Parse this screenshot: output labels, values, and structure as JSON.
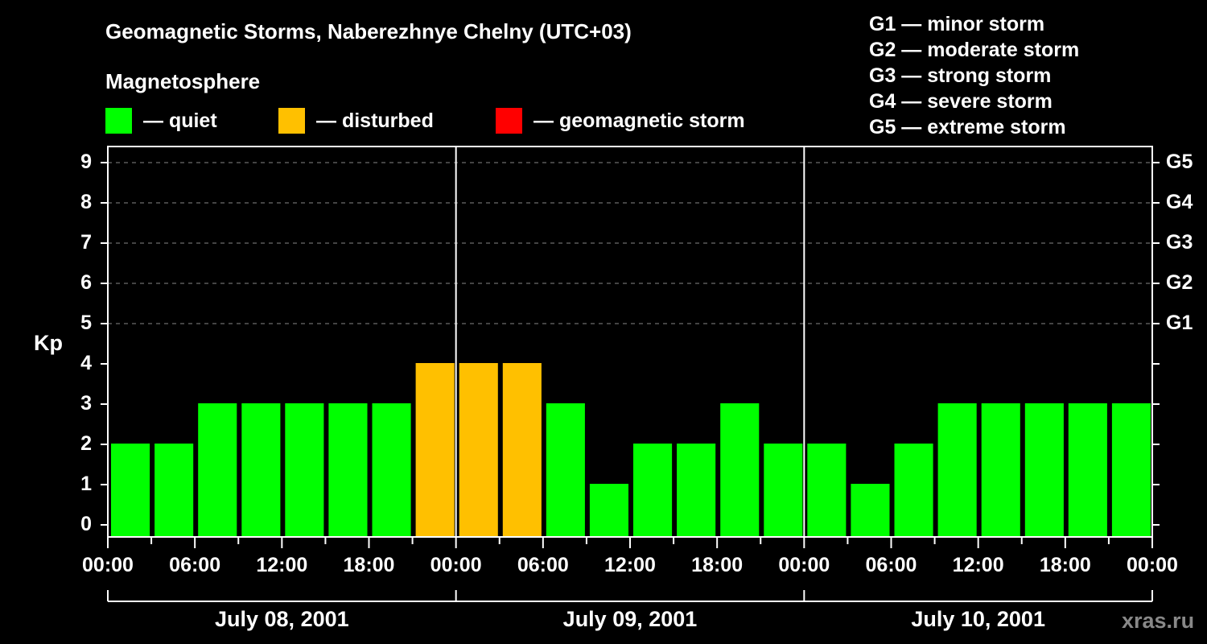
{
  "header": {
    "title": "Geomagnetic Storms, Naberezhnye Chelny (UTC+03)",
    "subtitle": "Magnetosphere"
  },
  "legend": {
    "items": [
      {
        "label": "— quiet",
        "color": "#00ff00"
      },
      {
        "label": "— disturbed",
        "color": "#ffc000"
      },
      {
        "label": "— geomagnetic storm",
        "color": "#ff0000"
      }
    ]
  },
  "storm_scale": [
    "G1 — minor storm",
    "G2 — moderate storm",
    "G3 — strong storm",
    "G4 — severe storm",
    "G5 — extreme storm"
  ],
  "axes": {
    "ylabel": "Kp",
    "yticks": [
      "0",
      "1",
      "2",
      "3",
      "4",
      "5",
      "6",
      "7",
      "8",
      "9"
    ],
    "right_ticks": [
      {
        "label": "G1",
        "kp": 5
      },
      {
        "label": "G2",
        "kp": 6
      },
      {
        "label": "G3",
        "kp": 7
      },
      {
        "label": "G4",
        "kp": 8
      },
      {
        "label": "G5",
        "kp": 9
      }
    ],
    "xticks": [
      "00:00",
      "06:00",
      "12:00",
      "18:00",
      "00:00",
      "06:00",
      "12:00",
      "18:00",
      "00:00",
      "06:00",
      "12:00",
      "18:00",
      "00:00"
    ],
    "days": [
      "July 08, 2001",
      "July 09, 2001",
      "July 10, 2001"
    ]
  },
  "watermark": "xras.ru",
  "colors": {
    "quiet": "#00ff00",
    "disturbed": "#ffc000",
    "storm": "#ff0000",
    "background": "#000000",
    "axis": "#ffffff",
    "grid": "#888888"
  },
  "chart_data": {
    "type": "bar",
    "title": "Geomagnetic Storms, Naberezhnye Chelny (UTC+03)",
    "subtitle": "Magnetosphere",
    "xlabel": "",
    "ylabel": "Kp",
    "ylim": [
      0,
      9
    ],
    "grid": "dashed horizontal lines at Kp 5-9",
    "legend_position": "top",
    "interval_hours": 3,
    "categories": [
      "Jul 08 00-03",
      "Jul 08 03-06",
      "Jul 08 06-09",
      "Jul 08 09-12",
      "Jul 08 12-15",
      "Jul 08 15-18",
      "Jul 08 18-21",
      "Jul 08 21-24",
      "Jul 09 00-03",
      "Jul 09 03-06",
      "Jul 09 06-09",
      "Jul 09 09-12",
      "Jul 09 12-15",
      "Jul 09 15-18",
      "Jul 09 18-21",
      "Jul 09 21-24",
      "Jul 10 00-03",
      "Jul 10 03-06",
      "Jul 10 06-09",
      "Jul 10 09-12",
      "Jul 10 12-15",
      "Jul 10 15-18",
      "Jul 10 18-21",
      "Jul 10 21-24"
    ],
    "values": [
      2,
      2,
      3,
      3,
      3,
      3,
      3,
      4,
      4,
      4,
      3,
      1,
      2,
      2,
      3,
      2,
      2,
      1,
      2,
      3,
      3,
      3,
      3,
      3
    ],
    "status": [
      "quiet",
      "quiet",
      "quiet",
      "quiet",
      "quiet",
      "quiet",
      "quiet",
      "disturbed",
      "disturbed",
      "disturbed",
      "quiet",
      "quiet",
      "quiet",
      "quiet",
      "quiet",
      "quiet",
      "quiet",
      "quiet",
      "quiet",
      "quiet",
      "quiet",
      "quiet",
      "quiet",
      "quiet"
    ],
    "right_axis": {
      "G1": 5,
      "G2": 6,
      "G3": 7,
      "G4": 8,
      "G5": 9
    }
  }
}
